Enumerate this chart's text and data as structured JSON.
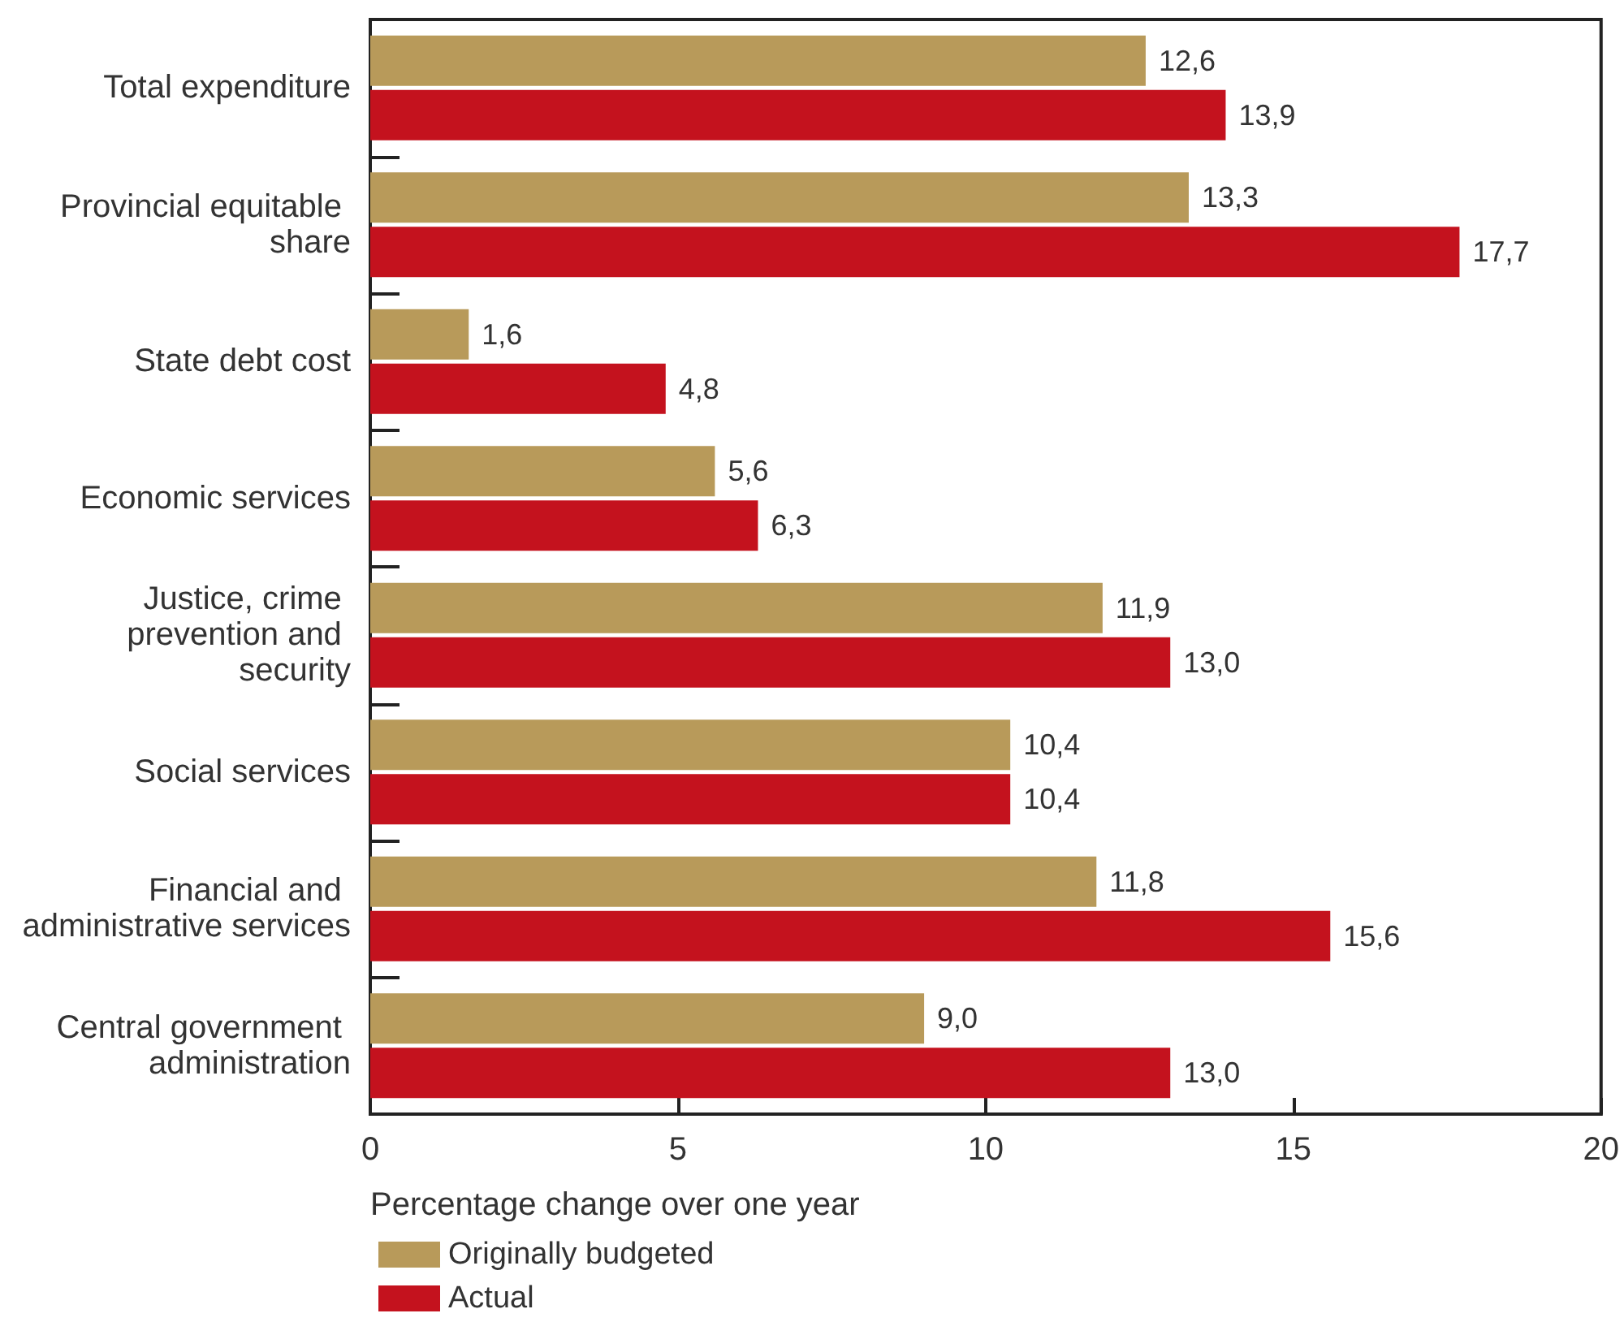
{
  "chart_data": {
    "type": "bar",
    "orientation": "horizontal",
    "xlabel": "Percentage change over one year",
    "categories": [
      "Total expenditure",
      "Provincial equitable share",
      "State debt cost",
      "Economic services",
      "Justice, crime prevention and security",
      "Social services",
      "Financial and administrative services",
      "Central government administration"
    ],
    "series": [
      {
        "name": "Originally budgeted",
        "color": "#b89a5a",
        "values": [
          12.6,
          13.3,
          1.6,
          5.6,
          11.9,
          10.4,
          11.8,
          9.0
        ],
        "value_labels": [
          "12,6",
          "13,3",
          "1,6",
          "5,6",
          "11,9",
          "10,4",
          "11,8",
          "9,0"
        ]
      },
      {
        "name": "Actual",
        "color": "#c4121e",
        "values": [
          13.9,
          17.7,
          4.8,
          6.3,
          13.0,
          10.4,
          15.6,
          13.0
        ],
        "value_labels": [
          "13,9",
          "17,7",
          "4,8",
          "6,3",
          "13,0",
          "10,4",
          "15,6",
          "13,0"
        ]
      }
    ],
    "xlim": [
      0,
      20
    ],
    "xticks": [
      0,
      5,
      10,
      15,
      20
    ],
    "grid": false,
    "legend": "bottom left"
  }
}
